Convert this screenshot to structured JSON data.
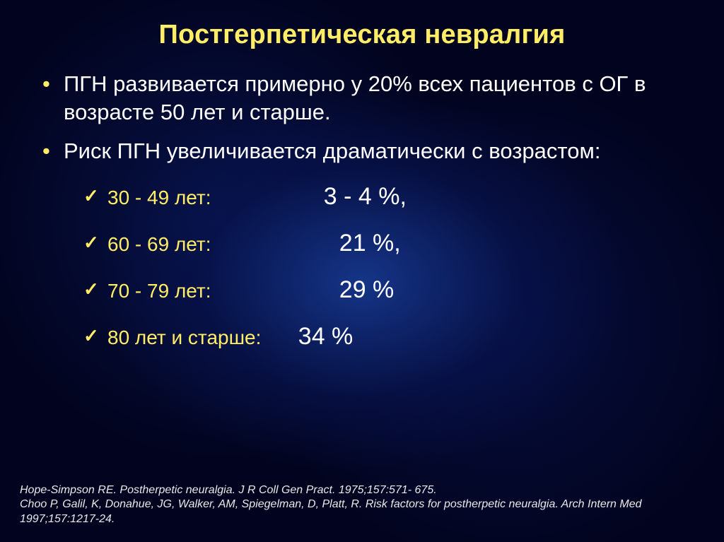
{
  "colors": {
    "title": "#ffed66",
    "bullet_marker": "#ffed66",
    "check_marker": "#ffed66",
    "body_text": "#ffffff",
    "background_deep": "#02041f",
    "background_nebula": "#163794"
  },
  "title": "Постгерпетическая невралгия",
  "bullets": [
    "ПГН развивается примерно у 20% всех пациентов с ОГ в возрасте 50 лет и старше.",
    "Риск ПГН увеличивается драматически с возрастом:"
  ],
  "age_table": {
    "rows": [
      {
        "age": "30 - 49 лет:",
        "pct": "3 - 4 %,",
        "age_min_width": 200,
        "pct_left": 98
      },
      {
        "age": "60 - 69 лет:",
        "pct": "21 %,",
        "age_min_width": 200,
        "pct_left": 120
      },
      {
        "age": "70 - 79 лет:",
        "pct": "29 %",
        "age_min_width": 200,
        "pct_left": 120
      },
      {
        "age": "80 лет и старше:",
        "pct": "34 %",
        "age_min_width": 240,
        "pct_left": 22
      }
    ]
  },
  "references": [
    "Hope-Simpson RE. Postherpetic neuralgia. J R Coll Gen Pract. 1975;157:571- 675.",
    "Choo P, Galil, K, Donahue, JG, Walker, AM, Spiegelman, D, Platt, R. Risk factors for postherpetic neuralgia. Arch Intern Med 1997;157:1217-24."
  ]
}
